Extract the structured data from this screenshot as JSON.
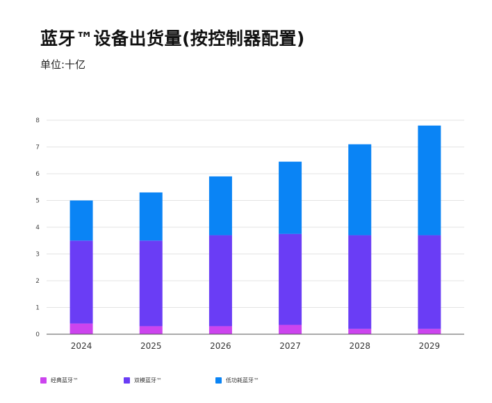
{
  "title": "蓝牙™设备出货量(按控制器配置)",
  "subtitle": "单位:十亿",
  "chart_data": {
    "type": "bar",
    "stacked": true,
    "categories": [
      "2024",
      "2025",
      "2026",
      "2027",
      "2028",
      "2029"
    ],
    "series": [
      {
        "name": "经典蓝牙™",
        "color": "#cc44ee",
        "values": [
          0.4,
          0.3,
          0.3,
          0.35,
          0.2,
          0.2
        ]
      },
      {
        "name": "双模蓝牙™",
        "color": "#6a3df5",
        "values": [
          3.1,
          3.2,
          3.4,
          3.4,
          3.5,
          3.5
        ]
      },
      {
        "name": "低功耗蓝牙™",
        "color": "#0a84f5",
        "values": [
          1.5,
          1.8,
          2.2,
          2.7,
          3.4,
          4.1
        ]
      }
    ],
    "yticks": [
      "0",
      "1",
      "2",
      "3",
      "4",
      "5",
      "6",
      "7",
      "8"
    ],
    "ylim": [
      0,
      8
    ],
    "grid": true,
    "legend_position": "bottom"
  }
}
